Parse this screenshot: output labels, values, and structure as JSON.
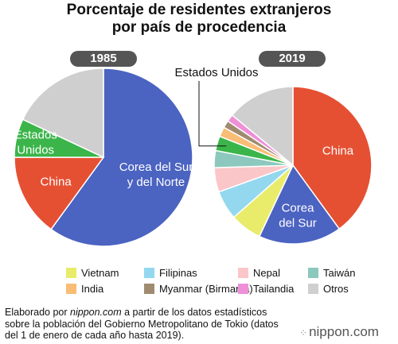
{
  "title_line1": "Porcentaje de residentes extranjeros",
  "title_line2": "por país de procedencia",
  "chart_data": [
    {
      "type": "pie",
      "year": "1985",
      "slices": [
        {
          "label": "Corea del Sur y del Norte",
          "label_lines": [
            "Corea del Sur",
            "y del Norte"
          ],
          "value": 60,
          "color": "#4b63c1",
          "text_color": "#ffffff"
        },
        {
          "label": "China",
          "label_lines": [
            "China"
          ],
          "value": 15,
          "color": "#e55033",
          "text_color": "#ffffff"
        },
        {
          "label": "Estados Unidos",
          "label_lines": [
            "Estados",
            "Unidos"
          ],
          "value": 7,
          "color": "#3bb54a",
          "text_color": "#ffffff"
        },
        {
          "label": "Otros",
          "label_lines": [],
          "value": 18,
          "color": "#cfcfcf",
          "text_color": "#ffffff"
        }
      ]
    },
    {
      "type": "pie",
      "year": "2019",
      "slices": [
        {
          "label": "China",
          "label_lines": [
            "China"
          ],
          "value": 40,
          "color": "#e55033",
          "text_color": "#ffffff"
        },
        {
          "label": "Corea del Sur",
          "label_lines": [
            "Corea",
            "del Sur"
          ],
          "value": 17,
          "color": "#4b63c1",
          "text_color": "#ffffff"
        },
        {
          "label": "Vietnam",
          "label_lines": [],
          "value": 6.5,
          "color": "#e8ec6a",
          "text_color": "#000000"
        },
        {
          "label": "Filipinas",
          "label_lines": [],
          "value": 6,
          "color": "#93d8ee",
          "text_color": "#000000"
        },
        {
          "label": "Nepal",
          "label_lines": [],
          "value": 5,
          "color": "#fac6c8",
          "text_color": "#000000"
        },
        {
          "label": "Taiwán",
          "label_lines": [],
          "value": 3.5,
          "color": "#8cc8bd",
          "text_color": "#000000"
        },
        {
          "label": "Estados Unidos",
          "label_lines": [],
          "value": 3,
          "color": "#3bb54a",
          "text_color": "#000000"
        },
        {
          "label": "India",
          "label_lines": [],
          "value": 2,
          "color": "#f9bd75",
          "text_color": "#000000"
        },
        {
          "label": "Myanmar (Birmania)",
          "label_lines": [],
          "value": 1.5,
          "color": "#a08a70",
          "text_color": "#000000"
        },
        {
          "label": "Tailandia",
          "label_lines": [],
          "value": 1.5,
          "color": "#ee8fd8",
          "text_color": "#000000"
        },
        {
          "label": "Otros",
          "label_lines": [],
          "value": 14,
          "color": "#cfcfcf",
          "text_color": "#000000"
        }
      ],
      "callout": "Estados Unidos"
    }
  ],
  "legend": [
    {
      "label": "Vietnam",
      "color": "#e8ec6a"
    },
    {
      "label": "Filipinas",
      "color": "#93d8ee"
    },
    {
      "label": "Nepal",
      "color": "#fac6c8"
    },
    {
      "label": "Taiwán",
      "color": "#8cc8bd"
    },
    {
      "label": "India",
      "color": "#f9bd75"
    },
    {
      "label": "Myanmar (Birmania)",
      "color": "#a08a70"
    },
    {
      "label": "Tailandia",
      "color": "#ee8fd8"
    },
    {
      "label": "Otros",
      "color": "#cfcfcf"
    }
  ],
  "footer": {
    "prefix": "Elaborado por ",
    "source": "nippon.com",
    "suffix": " a partir de los datos estadísticos sobre la población del Gobierno Metropolitano de Tokio (datos del 1 de enero de cada año hasta 2019)."
  },
  "logo": "nippon.com"
}
